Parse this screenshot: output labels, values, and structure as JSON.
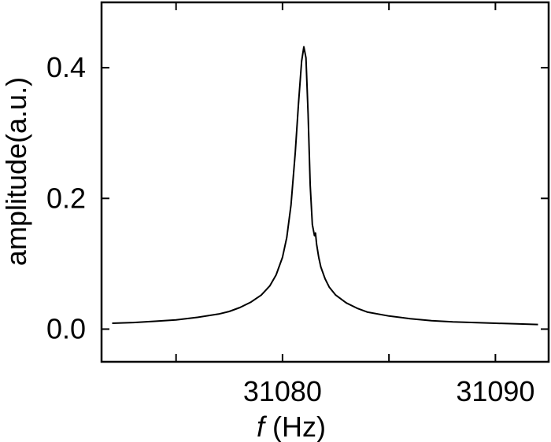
{
  "chart_data": {
    "type": "line",
    "title": "",
    "xlabel_var": "f",
    "xlabel_unit": " (Hz)",
    "ylabel": "amplitude(a.u.)",
    "xlim": [
      31071.5,
      31092.5
    ],
    "ylim": [
      -0.05,
      0.5
    ],
    "x_ticks": [
      31075,
      31080,
      31085,
      31090
    ],
    "x_tick_labels": [
      "",
      "31080",
      "",
      "31090"
    ],
    "y_ticks": [
      0.0,
      0.2,
      0.4
    ],
    "y_tick_labels": [
      "0.0",
      "0.2",
      "0.4"
    ],
    "grid": false,
    "series": [
      {
        "color": "#000000",
        "x": [
          31072.0,
          31073.0,
          31074.0,
          31075.0,
          31076.0,
          31077.0,
          31077.5,
          31078.0,
          31078.5,
          31079.0,
          31079.4,
          31079.7,
          31080.0,
          31080.2,
          31080.4,
          31080.6,
          31080.75,
          31080.9,
          31081.0,
          31081.1,
          31081.2,
          31081.3,
          31081.4,
          31081.5,
          31081.55,
          31081.6,
          31081.7,
          31081.8,
          31082.0,
          31082.2,
          31082.5,
          31083.0,
          31083.5,
          31084.0,
          31085.0,
          31086.0,
          31087.0,
          31088.0,
          31089.0,
          31090.0,
          31091.0,
          31092.0
        ],
        "y": [
          0.009,
          0.01,
          0.012,
          0.014,
          0.018,
          0.023,
          0.027,
          0.033,
          0.041,
          0.052,
          0.066,
          0.083,
          0.11,
          0.14,
          0.19,
          0.27,
          0.345,
          0.41,
          0.432,
          0.415,
          0.33,
          0.22,
          0.16,
          0.143,
          0.147,
          0.13,
          0.11,
          0.095,
          0.077,
          0.064,
          0.052,
          0.04,
          0.032,
          0.026,
          0.02,
          0.016,
          0.013,
          0.011,
          0.01,
          0.009,
          0.008,
          0.007
        ]
      }
    ]
  }
}
